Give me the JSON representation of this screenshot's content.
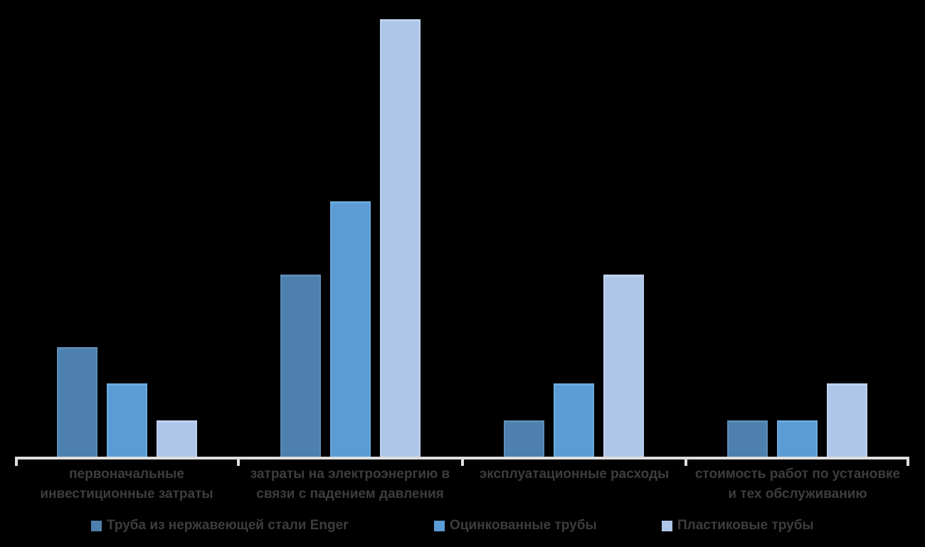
{
  "chart_data": {
    "type": "bar",
    "title": "",
    "xlabel": "",
    "ylabel": "",
    "ylim": [
      0,
      12.5
    ],
    "grid": false,
    "legend_position": "bottom",
    "background_color": "#000000",
    "axis_color": "#dedede",
    "label_color": "#3d3d3d",
    "categories": [
      "первоначальные инвестиционные затраты",
      "затраты на электроэнергию в связи с падением давления",
      "эксплуатационные расходы",
      "стоимость работ по установке и тех обслуживанию"
    ],
    "series": [
      {
        "name": "Труба  из нержавеющей стали Enger",
        "color": "#4d80ae",
        "edge_color": "#5d8db8",
        "values": [
          3,
          5,
          1,
          1
        ]
      },
      {
        "name": "Оцинкованные трубы",
        "color": "#5b9cd6",
        "edge_color": "#6caadd",
        "values": [
          2,
          7,
          2,
          1
        ]
      },
      {
        "name": "Пластиковые трубы",
        "color": "#aec7e8",
        "edge_color": "#bdd2ee",
        "values": [
          1,
          12,
          5,
          2
        ]
      }
    ]
  }
}
